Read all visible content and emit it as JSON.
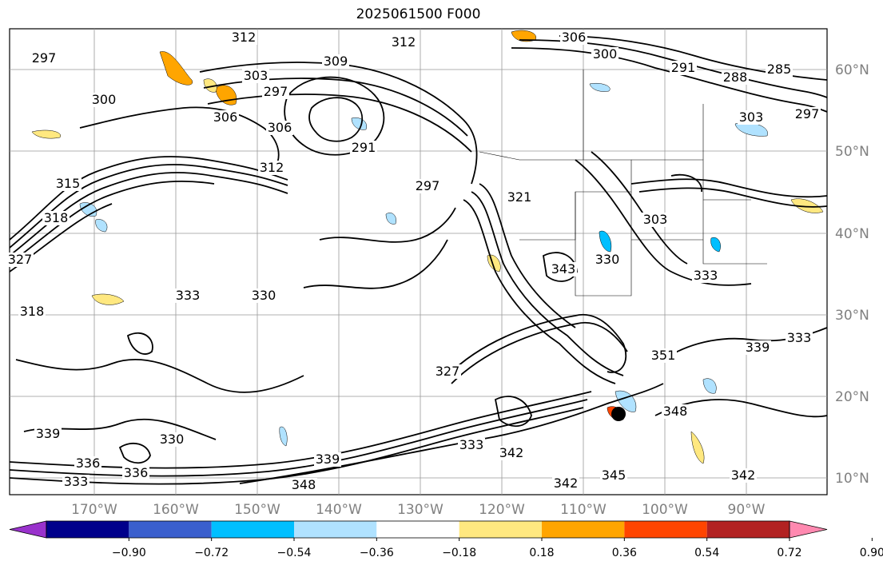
{
  "title": "2025061500 F000",
  "map": {
    "lat_labels": [
      "60°N",
      "50°N",
      "40°N",
      "30°N",
      "20°N",
      "10°N"
    ],
    "lon_labels": [
      "170°W",
      "160°W",
      "150°W",
      "140°W",
      "130°W",
      "120°W",
      "110°W",
      "100°W",
      "90°W"
    ],
    "contour_labels": [
      "312",
      "312",
      "306",
      "309",
      "300",
      "297",
      "291",
      "303",
      "297",
      "306",
      "300",
      "306",
      "291",
      "297",
      "312",
      "321",
      "303",
      "315",
      "288",
      "285",
      "297",
      "303",
      "343",
      "327",
      "333",
      "330",
      "318",
      "330",
      "333",
      "333",
      "339",
      "330",
      "336",
      "348",
      "339",
      "333",
      "342",
      "345",
      "342",
      "342",
      "339",
      "336",
      "351",
      "348",
      "318",
      "333",
      "327"
    ]
  },
  "colorbar": {
    "ticks": [
      "−0.90",
      "−0.72",
      "−0.54",
      "−0.36",
      "−0.18",
      "0.18",
      "0.36",
      "0.54",
      "0.72",
      "0.90"
    ],
    "colors": [
      "#9932cc",
      "#00008b",
      "#3a5fcd",
      "#00bfff",
      "#b0e2ff",
      "#ffffff",
      "#ffe880",
      "#ffa500",
      "#ff4500",
      "#b22222",
      "#ff89b0"
    ]
  },
  "marker": {
    "label": "point-marker"
  }
}
